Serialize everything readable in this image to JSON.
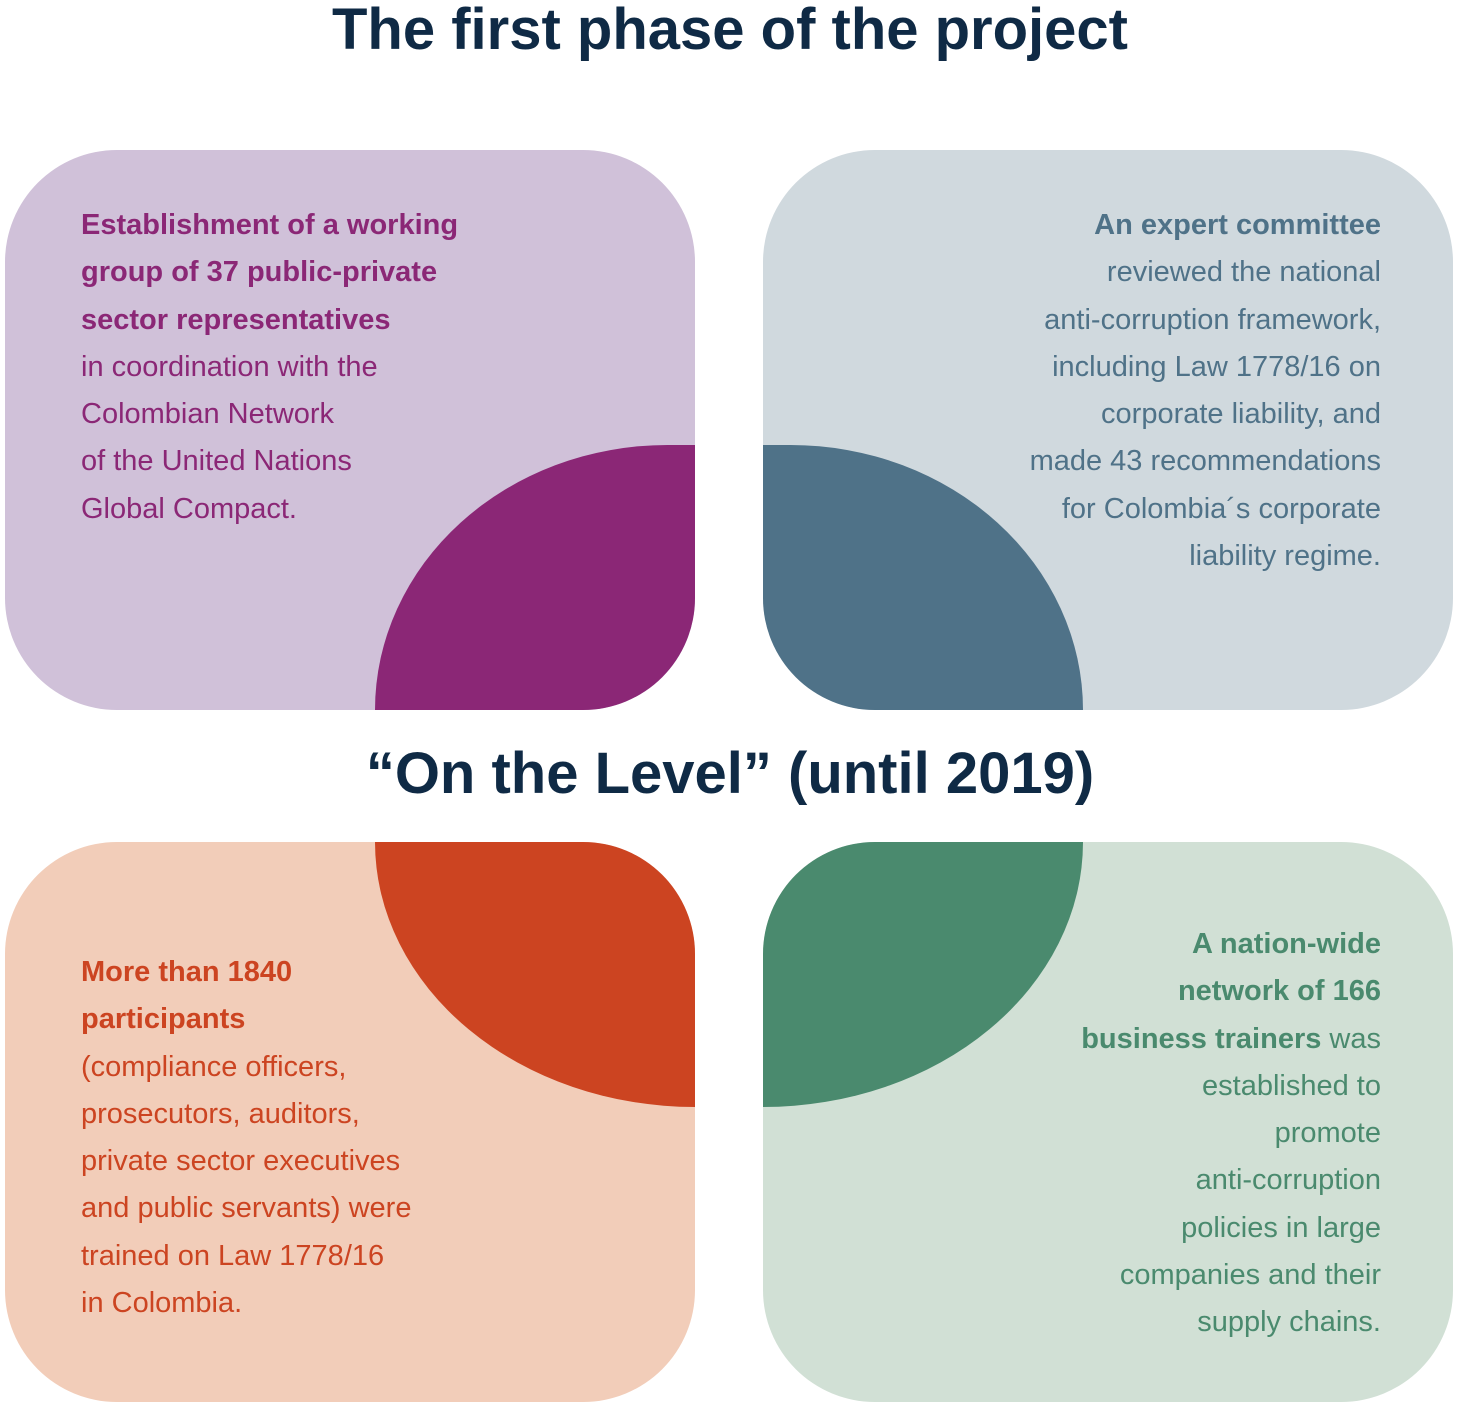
{
  "title": "The first phase of the project",
  "subtitle": "“On the Level” (until 2019)",
  "colors": {
    "title": "#0f2a45",
    "purple": "#8b2776",
    "purple_light": "#d0c1d9",
    "blue": "#4f7288",
    "blue_light": "#d0d9de",
    "orange": "#cc4421",
    "orange_light": "#f2cdb9",
    "green": "#4a8a6e",
    "green_light": "#d1e0d5"
  },
  "cards": [
    {
      "bold_lines": [
        "Establishment of a working",
        "group of 37 public-private",
        "sector representatives"
      ],
      "lines": [
        "in coordination with the",
        "Colombian Network",
        "of the United Nations",
        "Global Compact."
      ]
    },
    {
      "bold_lines": [
        "An expert committee"
      ],
      "lines": [
        "reviewed the national",
        "anti-corruption framework,",
        "including Law 1778/16 on",
        "corporate liability, and",
        "made 43 recommendations",
        "for Colombia´s corporate",
        "liability regime."
      ]
    },
    {
      "bold_lines": [
        "More than 1840",
        "participants"
      ],
      "lines": [
        "(compliance officers,",
        "prosecutors, auditors,",
        "private sector executives",
        "and public servants) were",
        "trained on Law 1778/16",
        "in Colombia."
      ]
    },
    {
      "bold_lines": [
        "A nation-wide",
        "network of 166"
      ],
      "mixed_bold": "business trainers",
      "mixed_rest": " was",
      "lines": [
        "established to",
        "promote",
        "anti-corruption",
        "policies in large",
        "companies and their",
        "supply chains."
      ]
    }
  ]
}
